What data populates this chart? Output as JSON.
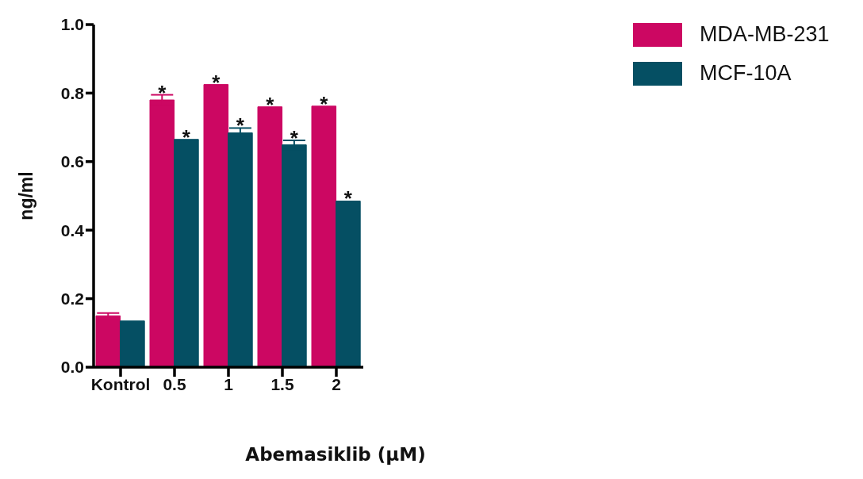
{
  "chart_data": {
    "type": "bar",
    "xlabel": "Abemasiklib (μM)",
    "ylabel": "ng/ml",
    "categories": [
      "Kontrol",
      "0.5",
      "1",
      "1.5",
      "2"
    ],
    "series": [
      {
        "name": "MDA-MB-231",
        "color": "#cc0762",
        "values": [
          0.15,
          0.78,
          0.825,
          0.76,
          0.762
        ],
        "errors": [
          0.008,
          0.015,
          null,
          null,
          null
        ],
        "value_labels": [
          null,
          "*",
          "*",
          "*",
          "*"
        ]
      },
      {
        "name": "MCF-10A",
        "color": "#054f63",
        "values": [
          0.135,
          0.665,
          0.684,
          0.649,
          0.485
        ],
        "errors": [
          null,
          null,
          0.014,
          0.013,
          null
        ],
        "value_labels": [
          null,
          "*",
          "*",
          "*",
          "*"
        ]
      }
    ],
    "ylim": [
      0,
      1.0
    ],
    "yticks": [
      {
        "value": 0,
        "label": "0.0"
      },
      {
        "value": 0.2,
        "label": "0.2"
      },
      {
        "value": 0.4,
        "label": "0.4"
      },
      {
        "value": 0.6,
        "label": "0.6"
      },
      {
        "value": 0.8,
        "label": "0.8"
      },
      {
        "value": 1.0,
        "label": "1.0"
      }
    ],
    "grid": false,
    "legend": "top right"
  }
}
